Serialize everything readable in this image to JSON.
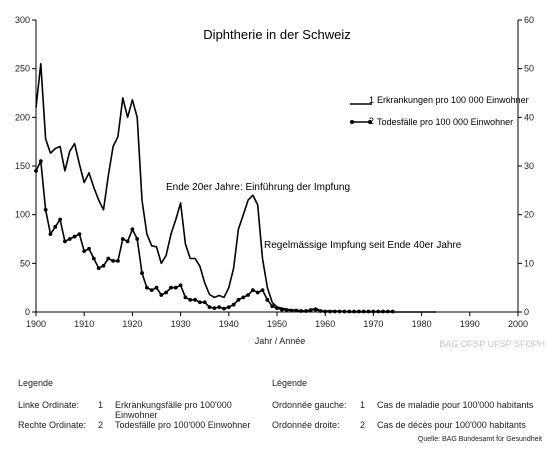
{
  "chart_data": {
    "type": "line",
    "title": "Diphtherie in der Schweiz",
    "xlabel": "Jahr / Année",
    "xlim": [
      1900,
      2000
    ],
    "xticks": [
      1900,
      1910,
      1920,
      1930,
      1940,
      1950,
      1960,
      1970,
      1980,
      1990,
      2000
    ],
    "ylim_left": [
      0,
      300
    ],
    "yticks_left": [
      0,
      50,
      100,
      150,
      200,
      250,
      300
    ],
    "ylim_right": [
      0,
      60
    ],
    "yticks_right": [
      0,
      10,
      20,
      30,
      40,
      50,
      60
    ],
    "grid": false,
    "legend_position": "top-right",
    "series": [
      {
        "name": "Erkrankungen pro 100 000 Einwohner",
        "key": "1",
        "axis": "left",
        "color": "#000000",
        "markers": false,
        "x": [
          1900,
          1901,
          1902,
          1903,
          1904,
          1905,
          1906,
          1907,
          1908,
          1909,
          1910,
          1911,
          1912,
          1913,
          1914,
          1915,
          1916,
          1917,
          1918,
          1919,
          1920,
          1921,
          1922,
          1923,
          1924,
          1925,
          1926,
          1927,
          1928,
          1929,
          1930,
          1931,
          1932,
          1933,
          1934,
          1935,
          1936,
          1937,
          1938,
          1939,
          1940,
          1941,
          1942,
          1943,
          1944,
          1945,
          1946,
          1947,
          1948,
          1949,
          1950,
          1951,
          1952,
          1953,
          1954,
          1955,
          1956,
          1957,
          1958,
          1959,
          1960,
          1962,
          1965,
          1970,
          1975,
          1980,
          1983
        ],
        "y": [
          210,
          255,
          178,
          163,
          168,
          170,
          145,
          165,
          173,
          152,
          133,
          143,
          128,
          115,
          105,
          140,
          170,
          180,
          220,
          200,
          218,
          200,
          115,
          80,
          68,
          67,
          50,
          58,
          80,
          95,
          112,
          70,
          55,
          55,
          47,
          30,
          18,
          15,
          17,
          15,
          25,
          45,
          85,
          100,
          115,
          120,
          110,
          55,
          25,
          10,
          5,
          4,
          3,
          2,
          2,
          1,
          1,
          2,
          4,
          1,
          1,
          1,
          0,
          0,
          0,
          0,
          0
        ]
      },
      {
        "name": "Todesfälle pro 100 000 Einwohner",
        "key": "2",
        "axis": "right",
        "color": "#000000",
        "markers": true,
        "x": [
          1900,
          1901,
          1902,
          1903,
          1904,
          1905,
          1906,
          1907,
          1908,
          1909,
          1910,
          1911,
          1912,
          1913,
          1914,
          1915,
          1916,
          1917,
          1918,
          1919,
          1920,
          1921,
          1922,
          1923,
          1924,
          1925,
          1926,
          1927,
          1928,
          1929,
          1930,
          1931,
          1932,
          1933,
          1934,
          1935,
          1936,
          1937,
          1938,
          1939,
          1940,
          1941,
          1942,
          1943,
          1944,
          1945,
          1946,
          1947,
          1948,
          1949,
          1950,
          1951,
          1952,
          1953,
          1954,
          1955,
          1956,
          1957,
          1958,
          1959,
          1960,
          1961,
          1962,
          1963,
          1964,
          1965,
          1966,
          1967,
          1968,
          1969,
          1970,
          1971,
          1972,
          1973,
          1974
        ],
        "y": [
          29,
          31,
          21,
          16,
          17.5,
          19,
          14.5,
          15,
          15.5,
          16,
          12.5,
          13,
          11,
          9,
          9.5,
          11,
          10.5,
          10.5,
          15,
          14.5,
          17,
          15,
          8,
          5,
          4.5,
          5,
          3.5,
          4,
          5,
          5,
          5.5,
          3,
          2.5,
          2.5,
          2,
          2,
          1,
          0.8,
          1,
          0.7,
          1,
          1.5,
          2.5,
          3,
          3.5,
          4.5,
          4,
          4.5,
          2.5,
          1.2,
          0.8,
          0.5,
          0.4,
          0.3,
          0.3,
          0.2,
          0.2,
          0.4,
          0.5,
          0.2,
          0.1,
          0.1,
          0.1,
          0.1,
          0.1,
          0.1,
          0.1,
          0.1,
          0.1,
          0.1,
          0.1,
          0.1,
          0.1,
          0.1,
          0.1
        ]
      }
    ],
    "annotations": [
      {
        "text": "Ende 20er Jahre: Einführung der Impfung",
        "x": 1928,
        "y": 122
      },
      {
        "text": "Regelmässige Impfung seit Ende 40er Jahre",
        "x": 1947,
        "y": 65
      }
    ]
  },
  "watermark": "BAG OFSP UFSP SFOPH",
  "legend_de": {
    "title": "Legende",
    "rows": [
      {
        "label": "Linke Ordinate:",
        "num": "1",
        "text": "Erkrankungsfälle pro 100'000",
        "text2": "Einwohner"
      },
      {
        "label": "Rechte Ordinate:",
        "num": "2",
        "text": "Todesfälle pro 100'000 Einwohner"
      }
    ]
  },
  "legend_fr": {
    "title": "Légende",
    "rows": [
      {
        "label": "Ordonnée gauche:",
        "num": "1",
        "text": "Cas de maladie pour 100'000 habitants"
      },
      {
        "label": "Ordonnée droite:",
        "num": "2",
        "text": "Cas de décès pour 100'000 habitants"
      }
    ]
  },
  "source": "Quelle: BAG Bundesamt für Gesundheit"
}
